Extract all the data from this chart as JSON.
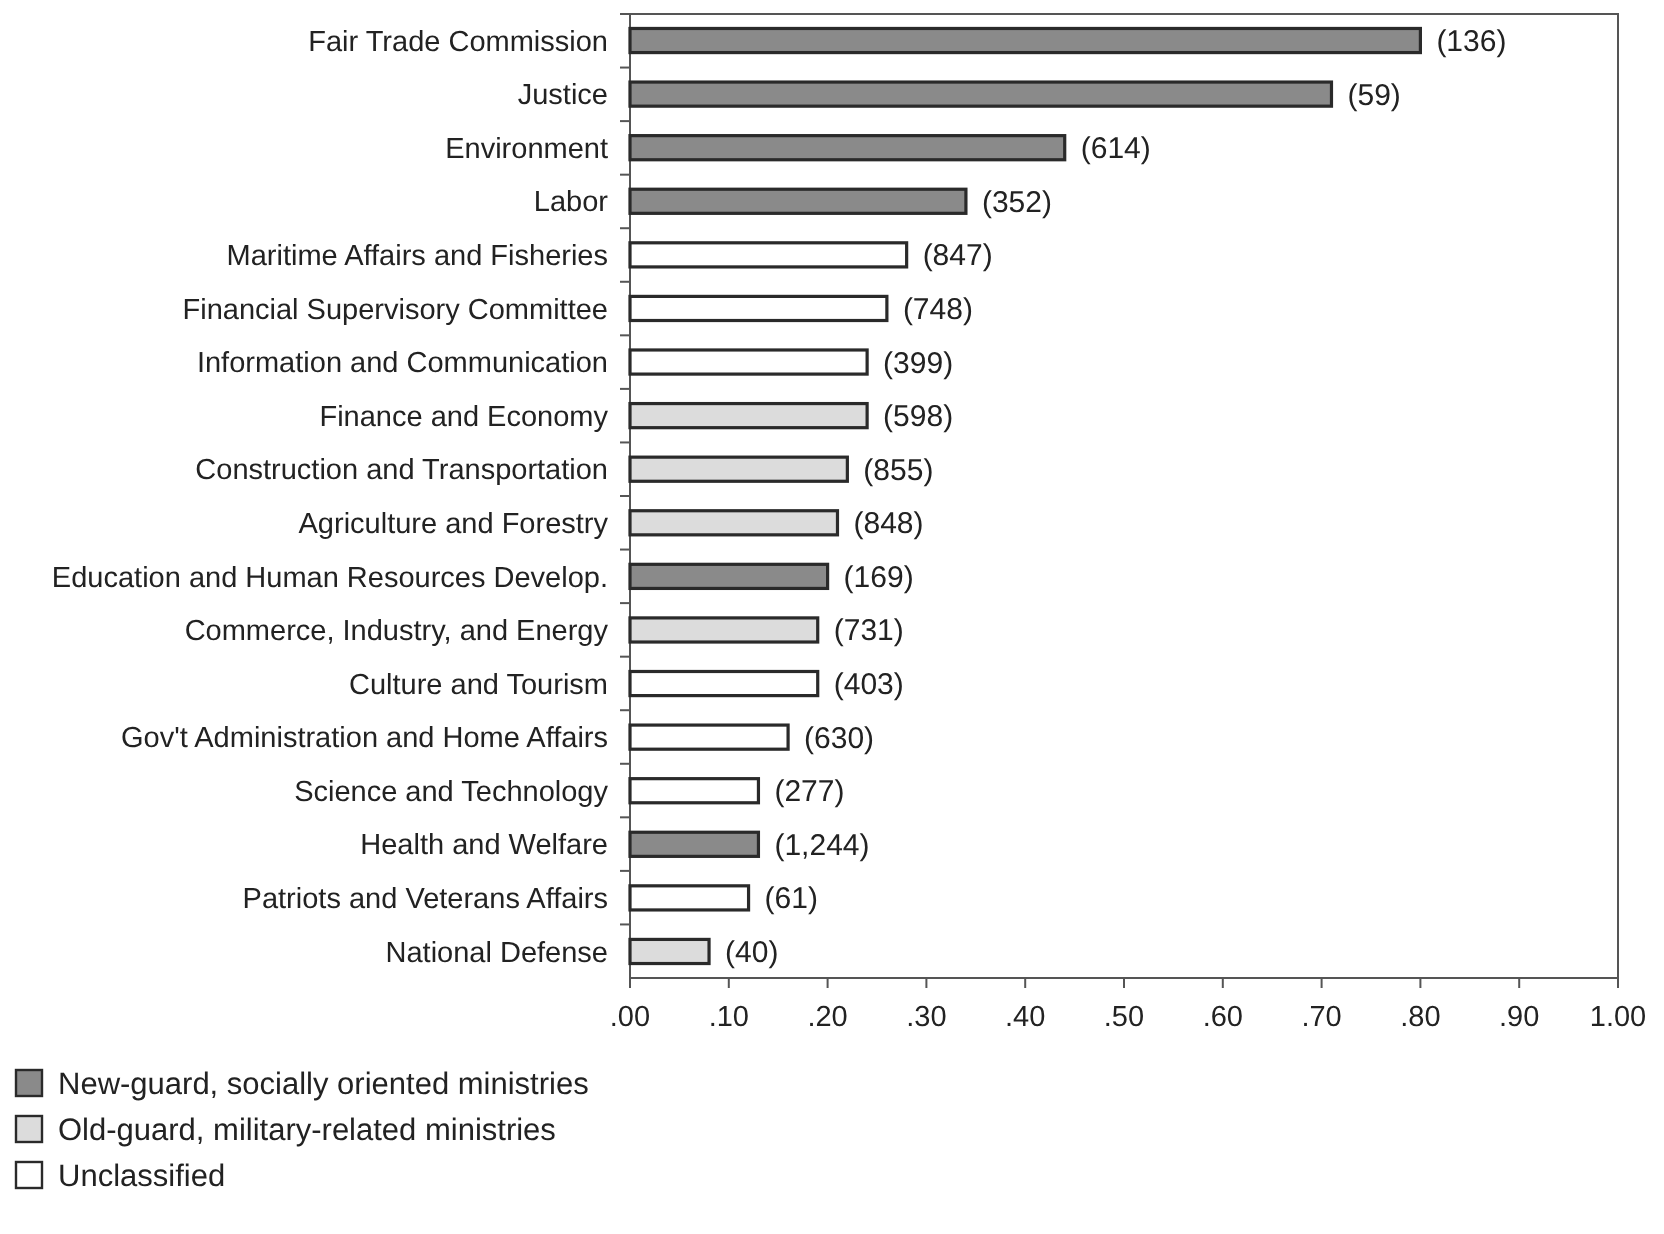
{
  "chart_data": {
    "type": "bar",
    "orientation": "horizontal",
    "stacked": true,
    "categories": [
      "Fair Trade Commission",
      "Justice",
      "Environment",
      "Labor",
      "Maritime Affairs and Fisheries",
      "Financial Supervisory Committee",
      "Information and Communication",
      "Finance and Economy",
      "Construction and Transportation",
      "Agriculture and Forestry",
      "Education and Human Resources Develop.",
      "Commerce, Industry, and Energy",
      "Culture and Tourism",
      "Gov't Administration and Home Affairs",
      "Science and Technology",
      "Health and Welfare",
      "Patriots and Veterans Affairs",
      "National Defense"
    ],
    "series": [
      {
        "name": "New-guard, socially oriented ministries",
        "color": "#8a8a8a",
        "values": [
          0.8,
          0.71,
          0.44,
          0.34,
          null,
          null,
          null,
          null,
          null,
          null,
          0.2,
          null,
          null,
          null,
          null,
          0.13,
          null,
          null
        ]
      },
      {
        "name": "Old-guard, military-related ministries",
        "color": "#dcdcdc",
        "values": [
          null,
          null,
          null,
          null,
          null,
          null,
          null,
          0.24,
          0.22,
          0.21,
          null,
          0.19,
          null,
          null,
          null,
          null,
          null,
          0.08
        ]
      },
      {
        "name": "Unclassified",
        "color": "#ffffff",
        "values": [
          null,
          null,
          null,
          null,
          0.28,
          0.26,
          0.24,
          null,
          null,
          null,
          null,
          null,
          0.19,
          0.16,
          0.13,
          null,
          0.12,
          null
        ]
      }
    ],
    "annotations": [
      {
        "text": "(136)",
        "x": 0.8,
        "y": "Fair Trade Commission"
      },
      {
        "text": "(59)",
        "x": 0.71,
        "y": "Justice"
      },
      {
        "text": "(614)",
        "x": 0.44,
        "y": "Environment"
      },
      {
        "text": "(352)",
        "x": 0.34,
        "y": "Labor"
      },
      {
        "text": "(847)",
        "x": 0.28,
        "y": "Maritime Affairs and Fisheries"
      },
      {
        "text": "(748)",
        "x": 0.26,
        "y": "Financial Supervisory Committee"
      },
      {
        "text": "(399)",
        "x": 0.24,
        "y": "Information and Communication"
      },
      {
        "text": "(598)",
        "x": 0.24,
        "y": "Finance and Economy"
      },
      {
        "text": "(855)",
        "x": 0.22,
        "y": "Construction and Transportation"
      },
      {
        "text": "(848)",
        "x": 0.21,
        "y": "Agriculture and Forestry"
      },
      {
        "text": "(169)",
        "x": 0.2,
        "y": "Education and Human Resources Develop."
      },
      {
        "text": "(731)",
        "x": 0.19,
        "y": "Commerce, Industry, and Energy"
      },
      {
        "text": "(403)",
        "x": 0.19,
        "y": "Culture and Tourism"
      },
      {
        "text": "(630)",
        "x": 0.16,
        "y": "Gov't Administration and Home Affairs"
      },
      {
        "text": "(277)",
        "x": 0.13,
        "y": "Science and Technology"
      },
      {
        "text": "(1,244)",
        "x": 0.13,
        "y": "Health and Welfare"
      },
      {
        "text": "(61)",
        "x": 0.12,
        "y": "Patriots and Veterans Affairs"
      },
      {
        "text": "(40)",
        "x": 0.08,
        "y": "National Defense"
      }
    ],
    "xlim": [
      0,
      1
    ],
    "xticks": [
      {
        "value": 0,
        "label": ".00"
      },
      {
        "value": 0.1,
        "label": ".10"
      },
      {
        "value": 0.2,
        "label": ".20"
      },
      {
        "value": 0.3,
        "label": ".30"
      },
      {
        "value": 0.4,
        "label": ".40"
      },
      {
        "value": 0.5,
        "label": ".50"
      },
      {
        "value": 0.6,
        "label": ".60"
      },
      {
        "value": 0.7,
        "label": ".70"
      },
      {
        "value": 0.8,
        "label": ".80"
      },
      {
        "value": 0.9,
        "label": ".90"
      },
      {
        "value": 1,
        "label": "1.00"
      }
    ],
    "legend": "bottom left"
  }
}
